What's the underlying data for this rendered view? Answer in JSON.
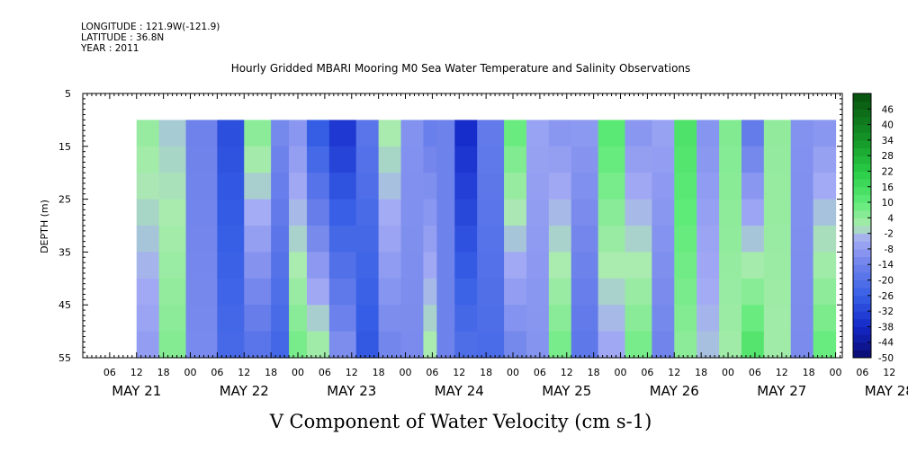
{
  "header": {
    "longitude_line": "LONGITUDE : 121.9W(-121.9)",
    "latitude_line": "LATITUDE : 36.8N",
    "year_line": "YEAR : 2011"
  },
  "chart_data": {
    "type": "heatmap",
    "title": "Hourly Gridded MBARI Mooring M0 Sea Water Temperature and Salinity Observations",
    "xlabel": "",
    "ylabel": "DEPTH (m)",
    "bottom_title": "V Component of Water Velocity (cm s-1)",
    "x_hour_ticks": [
      "06",
      "12",
      "18",
      "00",
      "06",
      "12",
      "18",
      "00",
      "06",
      "12",
      "18",
      "00",
      "06",
      "12",
      "18",
      "00",
      "06",
      "12",
      "18",
      "00",
      "06",
      "12",
      "18",
      "00",
      "06",
      "12",
      "18",
      "00",
      "06",
      "12",
      "18",
      "00"
    ],
    "x_day_labels": [
      "MAY 21",
      "MAY 22",
      "MAY 23",
      "MAY 24",
      "MAY 25",
      "MAY 26",
      "MAY 27",
      "MAY 28"
    ],
    "xlim_hours_since_may21_00": [
      0,
      169.5
    ],
    "data_start_hour": 12,
    "y_ticks": [
      5,
      15,
      25,
      35,
      45,
      55
    ],
    "ylim": [
      5,
      55
    ],
    "data_depth_range": [
      10,
      55
    ],
    "colorbar": {
      "labels": [
        "46",
        "40",
        "34",
        "28",
        "22",
        "16",
        "10",
        "4",
        "-2",
        "-8",
        "-14",
        "-20",
        "-26",
        "-32",
        "-38",
        "-44",
        "-50"
      ],
      "min": -50,
      "max": 52,
      "step": 3
    },
    "velocity_field_segments": [
      {
        "start_hour": 12,
        "end_hour": 17,
        "top": 4,
        "bottom": -8
      },
      {
        "start_hour": 17,
        "end_hour": 23,
        "top": -2,
        "bottom": 6
      },
      {
        "start_hour": 23,
        "end_hour": 30,
        "top": -14,
        "bottom": -12
      },
      {
        "start_hour": 30,
        "end_hour": 36,
        "top": -30,
        "bottom": -22
      },
      {
        "start_hour": 36,
        "end_hour": 42,
        "top": 6,
        "bottom": -20
      },
      {
        "start_hour": 42,
        "end_hour": 46,
        "top": -12,
        "bottom": -24
      },
      {
        "start_hour": 46,
        "end_hour": 50,
        "top": -10,
        "bottom": 8
      },
      {
        "start_hour": 50,
        "end_hour": 55,
        "top": -28,
        "bottom": 4
      },
      {
        "start_hour": 55,
        "end_hour": 61,
        "top": -36,
        "bottom": -10
      },
      {
        "start_hour": 61,
        "end_hour": 66,
        "top": -18,
        "bottom": -28
      },
      {
        "start_hour": 66,
        "end_hour": 71,
        "top": 2,
        "bottom": -14
      },
      {
        "start_hour": 71,
        "end_hour": 76,
        "top": -10,
        "bottom": -12
      },
      {
        "start_hour": 76,
        "end_hour": 79,
        "top": -16,
        "bottom": 2
      },
      {
        "start_hour": 79,
        "end_hour": 83,
        "top": -14,
        "bottom": -14
      },
      {
        "start_hour": 83,
        "end_hour": 88,
        "top": -38,
        "bottom": -20
      },
      {
        "start_hour": 88,
        "end_hour": 94,
        "top": -16,
        "bottom": -22
      },
      {
        "start_hour": 94,
        "end_hour": 99,
        "top": 10,
        "bottom": -14
      },
      {
        "start_hour": 99,
        "end_hour": 104,
        "top": -6,
        "bottom": -10
      },
      {
        "start_hour": 104,
        "end_hour": 109,
        "top": -10,
        "bottom": 8
      },
      {
        "start_hour": 109,
        "end_hour": 115,
        "top": -8,
        "bottom": -18
      },
      {
        "start_hour": 115,
        "end_hour": 121,
        "top": 12,
        "bottom": -6
      },
      {
        "start_hour": 121,
        "end_hour": 127,
        "top": -10,
        "bottom": 8
      },
      {
        "start_hour": 127,
        "end_hour": 132,
        "top": -6,
        "bottom": -14
      },
      {
        "start_hour": 132,
        "end_hour": 137,
        "top": 14,
        "bottom": 4
      },
      {
        "start_hour": 137,
        "end_hour": 142,
        "top": -10,
        "bottom": -2
      },
      {
        "start_hour": 142,
        "end_hour": 147,
        "top": 6,
        "bottom": 2
      },
      {
        "start_hour": 147,
        "end_hour": 152,
        "top": -18,
        "bottom": 14
      },
      {
        "start_hour": 152,
        "end_hour": 158,
        "top": 4,
        "bottom": 2
      },
      {
        "start_hour": 158,
        "end_hour": 163,
        "top": -10,
        "bottom": -12
      },
      {
        "start_hour": 163,
        "end_hour": 168,
        "top": -10,
        "bottom": 10
      }
    ]
  }
}
